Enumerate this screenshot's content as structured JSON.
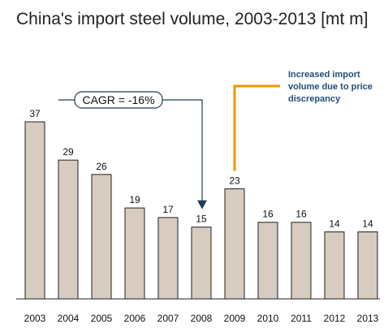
{
  "chart_data": {
    "type": "bar",
    "title": "China's import steel volume, 2003-2013 [mt m]",
    "categories": [
      "2003",
      "2004",
      "2005",
      "2006",
      "2007",
      "2008",
      "2009",
      "2010",
      "2011",
      "2012",
      "2013"
    ],
    "values": [
      37,
      29,
      26,
      19,
      17,
      15,
      23,
      16,
      16,
      14,
      14
    ],
    "ylim": [
      0,
      37
    ],
    "grid": false,
    "legend": "none",
    "bar_color": "#d8cbbf",
    "bar_edge_color": "#222222",
    "annotations": [
      {
        "text": "CAGR = -16%",
        "from_category": "2003",
        "to_category": "2008",
        "color": "#1f3f52"
      },
      {
        "lines": [
          "Increased import",
          "volume due to price",
          "discrepancy"
        ],
        "category": "2009",
        "color": "#f29400",
        "text_color": "#1f4e79"
      }
    ]
  }
}
